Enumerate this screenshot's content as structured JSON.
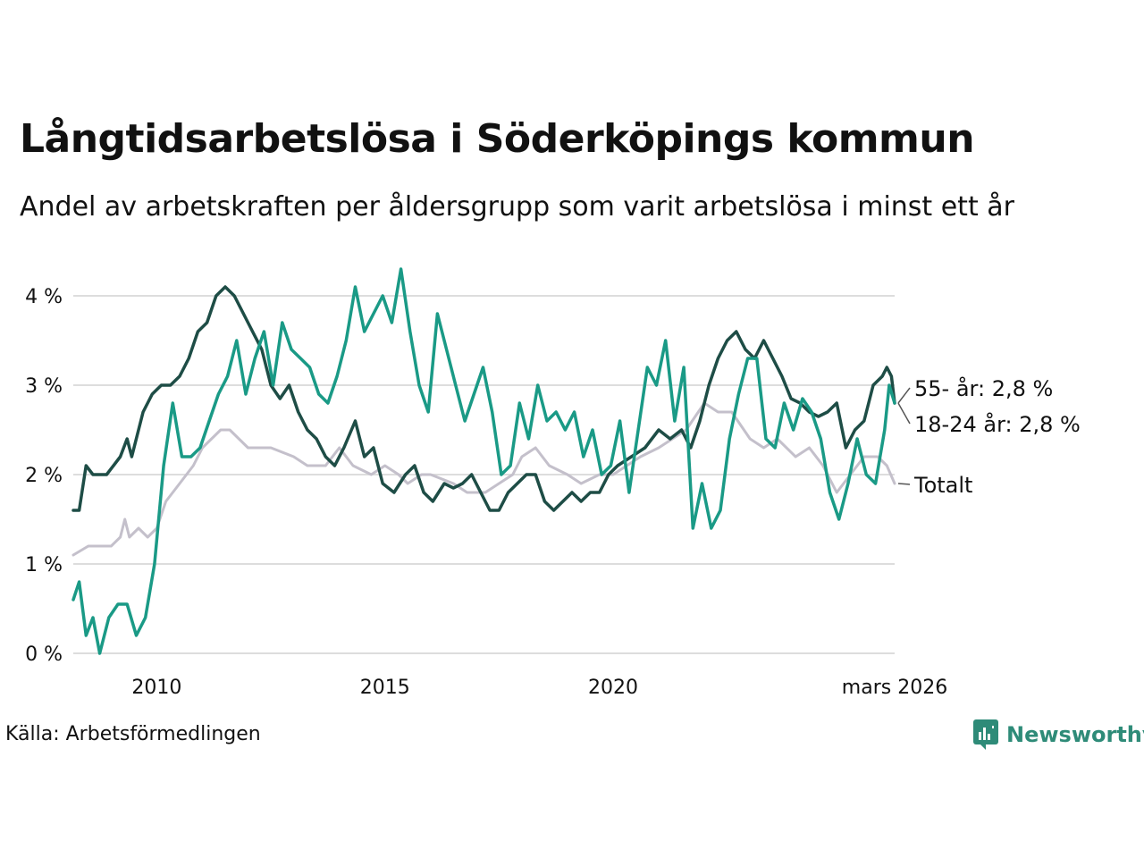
{
  "header": {
    "title": "Långtidsarbetslösa i Söderköpings kommun",
    "subtitle": "Andel av arbetskraften per åldersgrupp som varit arbetslösa i minst ett år"
  },
  "footer": {
    "source": "Källa: Arbetsförmedlingen",
    "brand": "Newsworthy"
  },
  "colors": {
    "s55": "#1e4d46",
    "s1824": "#1a9a86",
    "total": "#c4c0cb",
    "grid": "#dddddd",
    "brand": "#2e8b78"
  },
  "chart_data": {
    "type": "line",
    "title": "Långtidsarbetslösa i Söderköpings kommun",
    "subtitle": "Andel av arbetskraften per åldersgrupp som varit arbetslösa i minst ett år",
    "x_range": [
      2008.17,
      2026.17
    ],
    "ylim": [
      0,
      4.4
    ],
    "y_ticks": [
      {
        "value": 0,
        "label": "0 %"
      },
      {
        "value": 1,
        "label": "1 %"
      },
      {
        "value": 2,
        "label": "2 %"
      },
      {
        "value": 3,
        "label": "3 %"
      },
      {
        "value": 4,
        "label": "4 %"
      }
    ],
    "x_ticks": [
      {
        "value": 2010,
        "label": "2010"
      },
      {
        "value": 2015,
        "label": "2015"
      },
      {
        "value": 2020,
        "label": "2020"
      },
      {
        "value": 2026.17,
        "label": "mars 2026"
      }
    ],
    "grid": true,
    "series": [
      {
        "name": "Totalt",
        "end_label": "Totalt",
        "color_key": "total",
        "points": [
          [
            2008.17,
            1.1
          ],
          [
            2008.5,
            1.2
          ],
          [
            2009.0,
            1.2
          ],
          [
            2009.2,
            1.3
          ],
          [
            2009.3,
            1.5
          ],
          [
            2009.4,
            1.3
          ],
          [
            2009.6,
            1.4
          ],
          [
            2009.8,
            1.3
          ],
          [
            2010.0,
            1.4
          ],
          [
            2010.2,
            1.7
          ],
          [
            2010.5,
            1.9
          ],
          [
            2010.8,
            2.1
          ],
          [
            2011.0,
            2.3
          ],
          [
            2011.2,
            2.4
          ],
          [
            2011.4,
            2.5
          ],
          [
            2011.6,
            2.5
          ],
          [
            2011.8,
            2.4
          ],
          [
            2012.0,
            2.3
          ],
          [
            2012.5,
            2.3
          ],
          [
            2013.0,
            2.2
          ],
          [
            2013.3,
            2.1
          ],
          [
            2013.7,
            2.1
          ],
          [
            2014.0,
            2.3
          ],
          [
            2014.3,
            2.1
          ],
          [
            2014.7,
            2.0
          ],
          [
            2015.0,
            2.1
          ],
          [
            2015.3,
            2.0
          ],
          [
            2015.5,
            1.9
          ],
          [
            2015.8,
            2.0
          ],
          [
            2016.0,
            2.0
          ],
          [
            2016.5,
            1.9
          ],
          [
            2016.8,
            1.8
          ],
          [
            2017.2,
            1.8
          ],
          [
            2017.5,
            1.9
          ],
          [
            2017.8,
            2.0
          ],
          [
            2018.0,
            2.2
          ],
          [
            2018.3,
            2.3
          ],
          [
            2018.6,
            2.1
          ],
          [
            2019.0,
            2.0
          ],
          [
            2019.3,
            1.9
          ],
          [
            2019.7,
            2.0
          ],
          [
            2020.0,
            2.0
          ],
          [
            2020.3,
            2.1
          ],
          [
            2020.6,
            2.2
          ],
          [
            2021.0,
            2.3
          ],
          [
            2021.3,
            2.4
          ],
          [
            2021.6,
            2.5
          ],
          [
            2022.0,
            2.8
          ],
          [
            2022.3,
            2.7
          ],
          [
            2022.6,
            2.7
          ],
          [
            2023.0,
            2.4
          ],
          [
            2023.3,
            2.3
          ],
          [
            2023.6,
            2.4
          ],
          [
            2024.0,
            2.2
          ],
          [
            2024.3,
            2.3
          ],
          [
            2024.6,
            2.1
          ],
          [
            2024.9,
            1.8
          ],
          [
            2025.2,
            2.0
          ],
          [
            2025.5,
            2.2
          ],
          [
            2025.8,
            2.2
          ],
          [
            2026.0,
            2.1
          ],
          [
            2026.17,
            1.9
          ]
        ]
      },
      {
        "name": "55- år",
        "end_label": "55- år: 2,8 %",
        "color_key": "s55",
        "points": [
          [
            2008.17,
            1.6
          ],
          [
            2008.3,
            1.6
          ],
          [
            2008.45,
            2.1
          ],
          [
            2008.6,
            2.0
          ],
          [
            2008.9,
            2.0
          ],
          [
            2009.2,
            2.2
          ],
          [
            2009.35,
            2.4
          ],
          [
            2009.45,
            2.2
          ],
          [
            2009.7,
            2.7
          ],
          [
            2009.9,
            2.9
          ],
          [
            2010.1,
            3.0
          ],
          [
            2010.3,
            3.0
          ],
          [
            2010.5,
            3.1
          ],
          [
            2010.7,
            3.3
          ],
          [
            2010.9,
            3.6
          ],
          [
            2011.1,
            3.7
          ],
          [
            2011.3,
            4.0
          ],
          [
            2011.5,
            4.1
          ],
          [
            2011.7,
            4.0
          ],
          [
            2011.9,
            3.8
          ],
          [
            2012.1,
            3.6
          ],
          [
            2012.3,
            3.4
          ],
          [
            2012.5,
            3.0
          ],
          [
            2012.7,
            2.85
          ],
          [
            2012.9,
            3.0
          ],
          [
            2013.1,
            2.7
          ],
          [
            2013.3,
            2.5
          ],
          [
            2013.5,
            2.4
          ],
          [
            2013.7,
            2.2
          ],
          [
            2013.9,
            2.1
          ],
          [
            2014.1,
            2.3
          ],
          [
            2014.35,
            2.6
          ],
          [
            2014.55,
            2.2
          ],
          [
            2014.75,
            2.3
          ],
          [
            2014.95,
            1.9
          ],
          [
            2015.2,
            1.8
          ],
          [
            2015.45,
            2.0
          ],
          [
            2015.65,
            2.1
          ],
          [
            2015.85,
            1.8
          ],
          [
            2016.05,
            1.7
          ],
          [
            2016.3,
            1.9
          ],
          [
            2016.5,
            1.85
          ],
          [
            2016.7,
            1.9
          ],
          [
            2016.9,
            2.0
          ],
          [
            2017.1,
            1.8
          ],
          [
            2017.3,
            1.6
          ],
          [
            2017.5,
            1.6
          ],
          [
            2017.7,
            1.8
          ],
          [
            2017.9,
            1.9
          ],
          [
            2018.1,
            2.0
          ],
          [
            2018.3,
            2.0
          ],
          [
            2018.5,
            1.7
          ],
          [
            2018.7,
            1.6
          ],
          [
            2018.9,
            1.7
          ],
          [
            2019.1,
            1.8
          ],
          [
            2019.3,
            1.7
          ],
          [
            2019.5,
            1.8
          ],
          [
            2019.7,
            1.8
          ],
          [
            2019.9,
            2.0
          ],
          [
            2020.1,
            2.1
          ],
          [
            2020.4,
            2.2
          ],
          [
            2020.7,
            2.3
          ],
          [
            2021.0,
            2.5
          ],
          [
            2021.25,
            2.4
          ],
          [
            2021.5,
            2.5
          ],
          [
            2021.7,
            2.3
          ],
          [
            2021.9,
            2.6
          ],
          [
            2022.1,
            3.0
          ],
          [
            2022.3,
            3.3
          ],
          [
            2022.5,
            3.5
          ],
          [
            2022.7,
            3.6
          ],
          [
            2022.9,
            3.4
          ],
          [
            2023.1,
            3.3
          ],
          [
            2023.3,
            3.5
          ],
          [
            2023.5,
            3.3
          ],
          [
            2023.7,
            3.1
          ],
          [
            2023.9,
            2.85
          ],
          [
            2024.1,
            2.8
          ],
          [
            2024.3,
            2.7
          ],
          [
            2024.5,
            2.65
          ],
          [
            2024.7,
            2.7
          ],
          [
            2024.9,
            2.8
          ],
          [
            2025.1,
            2.3
          ],
          [
            2025.3,
            2.5
          ],
          [
            2025.5,
            2.6
          ],
          [
            2025.7,
            3.0
          ],
          [
            2025.9,
            3.1
          ],
          [
            2026.0,
            3.2
          ],
          [
            2026.1,
            3.1
          ],
          [
            2026.17,
            2.8
          ]
        ]
      },
      {
        "name": "18-24 år",
        "end_label": "18-24 år: 2,8 %",
        "color_key": "s1824",
        "points": [
          [
            2008.17,
            0.6
          ],
          [
            2008.3,
            0.8
          ],
          [
            2008.45,
            0.2
          ],
          [
            2008.6,
            0.4
          ],
          [
            2008.75,
            0.0
          ],
          [
            2008.95,
            0.4
          ],
          [
            2009.15,
            0.55
          ],
          [
            2009.35,
            0.55
          ],
          [
            2009.55,
            0.2
          ],
          [
            2009.75,
            0.4
          ],
          [
            2009.95,
            1.0
          ],
          [
            2010.15,
            2.1
          ],
          [
            2010.35,
            2.8
          ],
          [
            2010.55,
            2.2
          ],
          [
            2010.75,
            2.2
          ],
          [
            2010.95,
            2.3
          ],
          [
            2011.15,
            2.6
          ],
          [
            2011.35,
            2.9
          ],
          [
            2011.55,
            3.1
          ],
          [
            2011.75,
            3.5
          ],
          [
            2011.95,
            2.9
          ],
          [
            2012.15,
            3.3
          ],
          [
            2012.35,
            3.6
          ],
          [
            2012.55,
            3.0
          ],
          [
            2012.75,
            3.7
          ],
          [
            2012.95,
            3.4
          ],
          [
            2013.15,
            3.3
          ],
          [
            2013.35,
            3.2
          ],
          [
            2013.55,
            2.9
          ],
          [
            2013.75,
            2.8
          ],
          [
            2013.95,
            3.1
          ],
          [
            2014.15,
            3.5
          ],
          [
            2014.35,
            4.1
          ],
          [
            2014.55,
            3.6
          ],
          [
            2014.75,
            3.8
          ],
          [
            2014.95,
            4.0
          ],
          [
            2015.15,
            3.7
          ],
          [
            2015.35,
            4.3
          ],
          [
            2015.55,
            3.6
          ],
          [
            2015.75,
            3.0
          ],
          [
            2015.95,
            2.7
          ],
          [
            2016.15,
            3.8
          ],
          [
            2016.35,
            3.4
          ],
          [
            2016.55,
            3.0
          ],
          [
            2016.75,
            2.6
          ],
          [
            2016.95,
            2.9
          ],
          [
            2017.15,
            3.2
          ],
          [
            2017.35,
            2.7
          ],
          [
            2017.55,
            2.0
          ],
          [
            2017.75,
            2.1
          ],
          [
            2017.95,
            2.8
          ],
          [
            2018.15,
            2.4
          ],
          [
            2018.35,
            3.0
          ],
          [
            2018.55,
            2.6
          ],
          [
            2018.75,
            2.7
          ],
          [
            2018.95,
            2.5
          ],
          [
            2019.15,
            2.7
          ],
          [
            2019.35,
            2.2
          ],
          [
            2019.55,
            2.5
          ],
          [
            2019.75,
            2.0
          ],
          [
            2019.95,
            2.1
          ],
          [
            2020.15,
            2.6
          ],
          [
            2020.35,
            1.8
          ],
          [
            2020.55,
            2.5
          ],
          [
            2020.75,
            3.2
          ],
          [
            2020.95,
            3.0
          ],
          [
            2021.15,
            3.5
          ],
          [
            2021.35,
            2.6
          ],
          [
            2021.55,
            3.2
          ],
          [
            2021.75,
            1.4
          ],
          [
            2021.95,
            1.9
          ],
          [
            2022.15,
            1.4
          ],
          [
            2022.35,
            1.6
          ],
          [
            2022.55,
            2.4
          ],
          [
            2022.75,
            2.9
          ],
          [
            2022.95,
            3.3
          ],
          [
            2023.15,
            3.3
          ],
          [
            2023.35,
            2.4
          ],
          [
            2023.55,
            2.3
          ],
          [
            2023.75,
            2.8
          ],
          [
            2023.95,
            2.5
          ],
          [
            2024.15,
            2.85
          ],
          [
            2024.35,
            2.7
          ],
          [
            2024.55,
            2.4
          ],
          [
            2024.75,
            1.8
          ],
          [
            2024.95,
            1.5
          ],
          [
            2025.15,
            1.9
          ],
          [
            2025.35,
            2.4
          ],
          [
            2025.55,
            2.0
          ],
          [
            2025.75,
            1.9
          ],
          [
            2025.95,
            2.5
          ],
          [
            2026.05,
            3.0
          ],
          [
            2026.17,
            2.8
          ]
        ]
      }
    ]
  }
}
